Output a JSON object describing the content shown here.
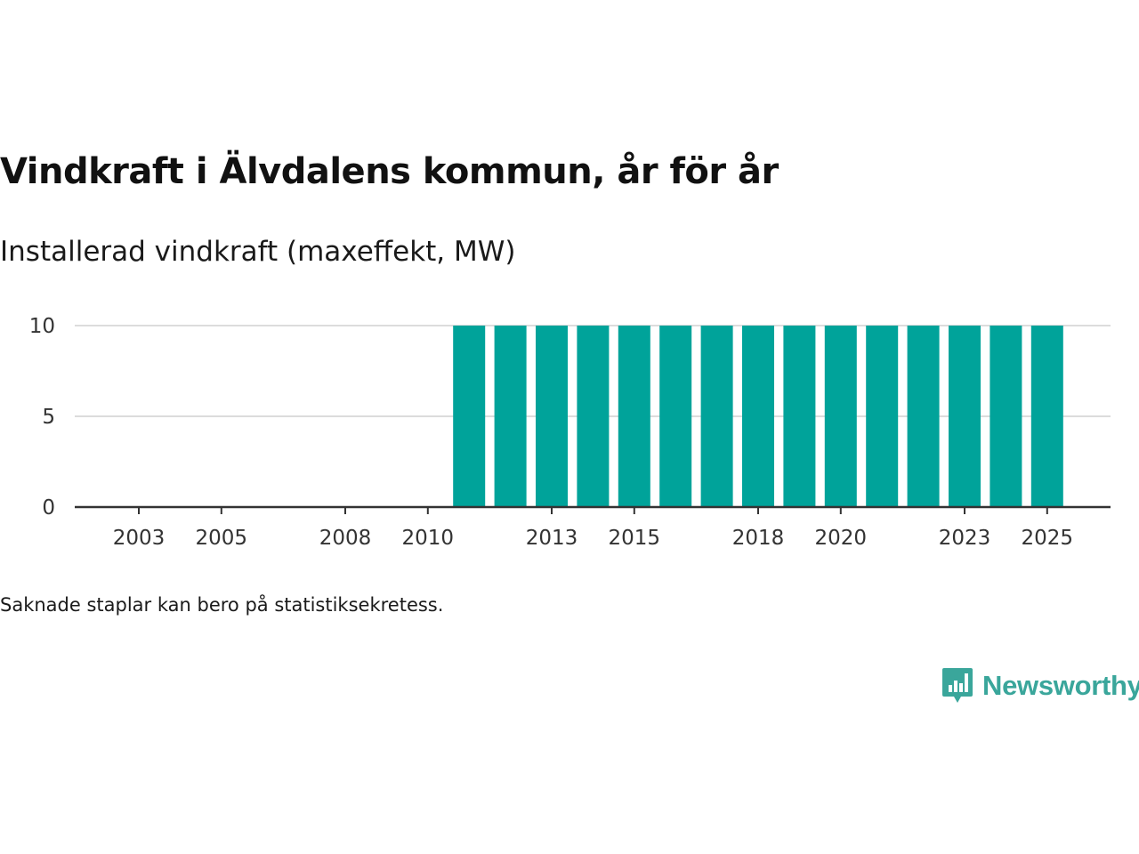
{
  "title": "Vindkraft i Älvdalens kommun, år för år",
  "subtitle": "Installerad vindkraft (maxeffekt, MW)",
  "footnote": "Saknade staplar kan bero på statistiksekretess.",
  "brand": {
    "name": "Newsworthy",
    "color": "#3aa69b"
  },
  "chart_data": {
    "type": "bar",
    "title": "Vindkraft i Älvdalens kommun, år för år",
    "ylabel": "Installerad vindkraft (maxeffekt, MW)",
    "xlabel": "",
    "categories": [
      "2003",
      "2004",
      "2005",
      "2006",
      "2007",
      "2008",
      "2009",
      "2010",
      "2011",
      "2012",
      "2013",
      "2014",
      "2015",
      "2016",
      "2017",
      "2018",
      "2019",
      "2020",
      "2021",
      "2022",
      "2023",
      "2024",
      "2025"
    ],
    "values": [
      0,
      0,
      0,
      0,
      0,
      0,
      0,
      0,
      10,
      10,
      10,
      10,
      10,
      10,
      10,
      10,
      10,
      10,
      10,
      10,
      10,
      10,
      10
    ],
    "x_tick_labels": [
      "2003",
      "2005",
      "2008",
      "2010",
      "2013",
      "2015",
      "2018",
      "2020",
      "2023",
      "2025"
    ],
    "y_ticks": [
      0,
      5,
      10
    ],
    "y_tick_labels": [
      "0",
      "5",
      "10"
    ],
    "ylim": [
      0,
      10
    ],
    "grid": true,
    "bar_color": "#00a39a"
  }
}
